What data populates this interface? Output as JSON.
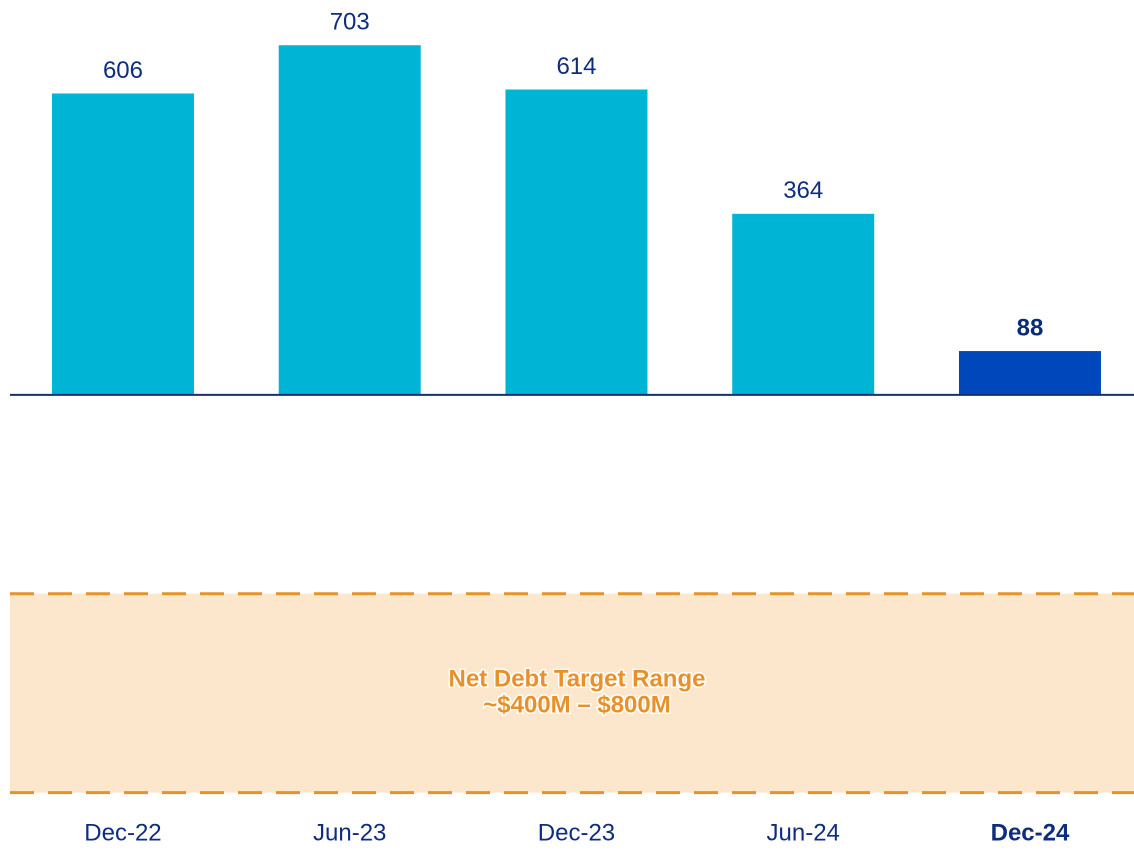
{
  "chart_data": {
    "type": "bar",
    "categories": [
      "Dec-22",
      "Jun-23",
      "Dec-23",
      "Jun-24",
      "Dec-24"
    ],
    "values": [
      606,
      703,
      614,
      364,
      88
    ],
    "colors": [
      "#00b4d5",
      "#00b4d5",
      "#00b4d5",
      "#00b4d5",
      "#0047bb"
    ],
    "label_weights": [
      "normal",
      "normal",
      "normal",
      "normal",
      "bold"
    ],
    "ylim": [
      -845,
      794
    ],
    "band": {
      "from": -400,
      "to": -800,
      "color": "#fde7cc",
      "line_color": "#e8912a",
      "label": [
        "Net Debt Target Range",
        "~$400M – $800M"
      ]
    }
  }
}
